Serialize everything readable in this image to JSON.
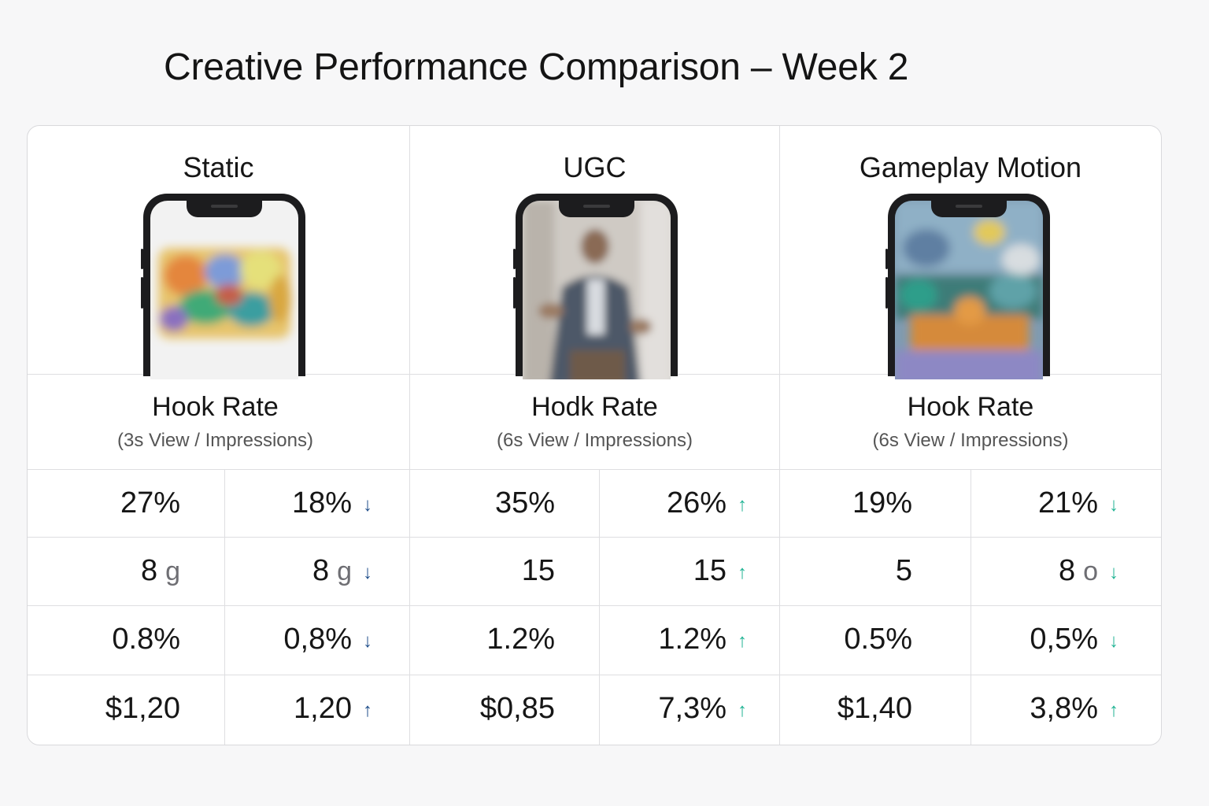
{
  "title": "Creative Performance Comparison – Week 2",
  "creatives": [
    {
      "name": "Static",
      "metric_title": "Hook Rate",
      "metric_sub": "(3s View / Impressions)",
      "rows": [
        {
          "a": "27%",
          "b": "18%",
          "b_arrow": "down",
          "arrow_color": "#1f4e8a"
        },
        {
          "a": "8",
          "a_unit": "g",
          "b": "8",
          "b_unit": "g",
          "b_arrow": "down",
          "arrow_color": "#1f4e8a"
        },
        {
          "a": "0.8%",
          "b": "0,8%",
          "b_arrow": "down",
          "arrow_color": "#1f4e8a"
        },
        {
          "a": "$1,20",
          "b": "1,20",
          "b_arrow": "up",
          "arrow_color": "#1f4e8a"
        }
      ]
    },
    {
      "name": "UGC",
      "metric_title": "Hodk Rate",
      "metric_sub": "(6s View / Impressions)",
      "rows": [
        {
          "a": "35%",
          "b": "26%",
          "b_arrow": "up",
          "arrow_color": "#20b394"
        },
        {
          "a": "15",
          "b": "15",
          "b_arrow": "up",
          "arrow_color": "#20b394"
        },
        {
          "a": "1.2%",
          "b": "1.2%",
          "b_arrow": "up",
          "arrow_color": "#20b394"
        },
        {
          "a": "$0,85",
          "b": "7,3%",
          "b_arrow": "up",
          "arrow_color": "#20b394"
        }
      ]
    },
    {
      "name": "Gameplay Motion",
      "metric_title": "Hook Rate",
      "metric_sub": "(6s View / Impressions)",
      "rows": [
        {
          "a": "19%",
          "b": "21%",
          "b_arrow": "down",
          "arrow_color": "#20b394"
        },
        {
          "a": "5",
          "b": "8",
          "b_unit": "o",
          "b_arrow": "down",
          "arrow_color": "#20b394"
        },
        {
          "a": "0.5%",
          "b": "0,5%",
          "b_arrow": "down",
          "arrow_color": "#20b394"
        },
        {
          "a": "$1,40",
          "b": "3,8%",
          "b_arrow": "up",
          "arrow_color": "#20b394"
        }
      ]
    }
  ],
  "icons": {
    "up": "arrow-up-icon",
    "down": "arrow-down-icon"
  }
}
